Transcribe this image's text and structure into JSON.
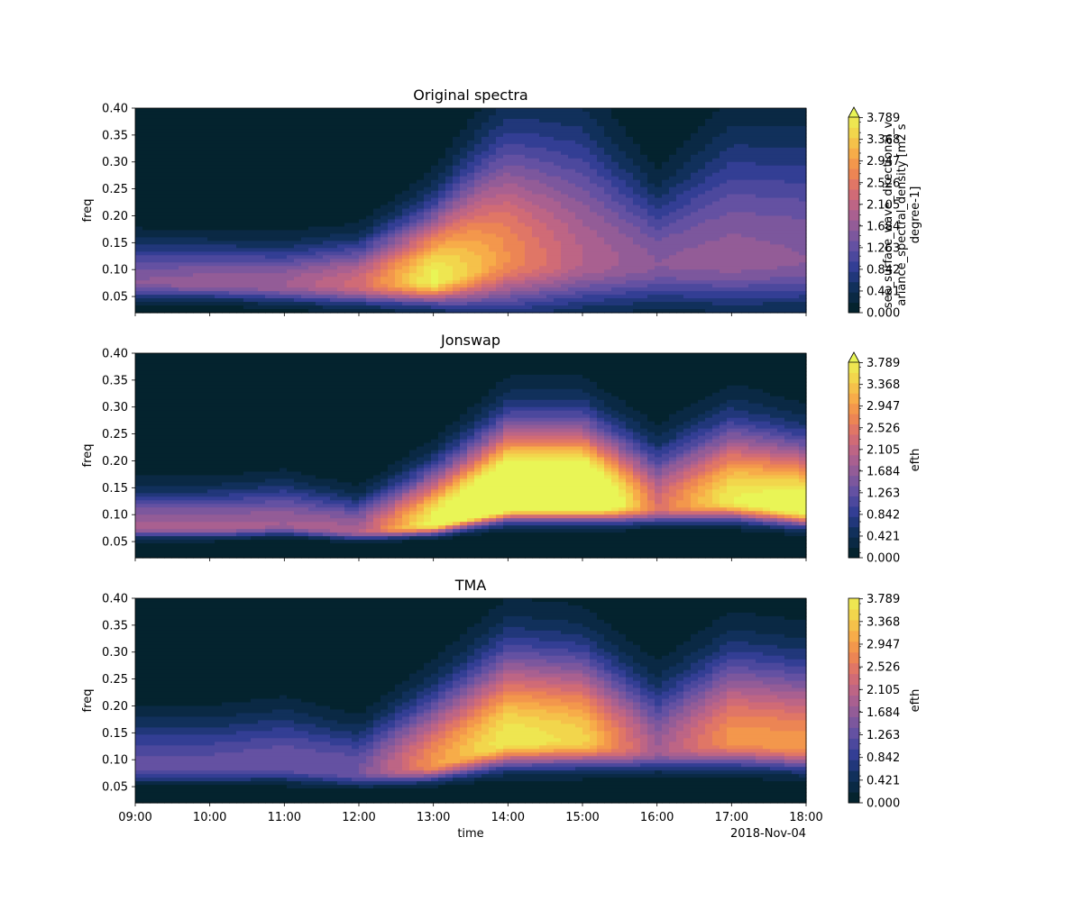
{
  "chart_data": [
    {
      "type": "heatmap",
      "title": "Original spectra",
      "xlabel": "",
      "ylabel": "freq",
      "xlim": [
        "09:00",
        "18:00"
      ],
      "ylim": [
        0.02,
        0.4
      ],
      "y_ticks": [
        0.05,
        0.1,
        0.15,
        0.2,
        0.25,
        0.3,
        0.35,
        0.4
      ],
      "x_tick_labels_visible": false,
      "colorbar": {
        "label": "sea_surface_wave_directional_variance_spectral_density [m2 s degree-1]",
        "label_lines": [
          "sea_surface_wave_directional_v",
          "ariance_spectral_density [m2 s",
          "degree-1]"
        ],
        "ticks": [
          0.0,
          0.421,
          0.842,
          1.263,
          1.684,
          2.105,
          2.526,
          2.947,
          3.368,
          3.789
        ],
        "extend": "max",
        "vmax": 4.0
      },
      "times": [
        "09:00",
        "10:00",
        "11:00",
        "12:00",
        "13:00",
        "14:00",
        "15:00",
        "16:00",
        "17:00",
        "18:00"
      ],
      "peak_freq": [
        0.075,
        0.075,
        0.072,
        0.072,
        0.08,
        0.12,
        0.115,
        0.11,
        0.115,
        0.115
      ],
      "peak_value": [
        1.6,
        1.7,
        1.8,
        2.3,
        3.9,
        2.8,
        2.0,
        1.6,
        1.7,
        1.6
      ],
      "low_width": [
        0.02,
        0.02,
        0.022,
        0.024,
        0.028,
        0.06,
        0.055,
        0.05,
        0.055,
        0.055
      ],
      "high_width": [
        0.05,
        0.048,
        0.047,
        0.052,
        0.085,
        0.15,
        0.16,
        0.085,
        0.15,
        0.15
      ]
    },
    {
      "type": "heatmap",
      "title": "Jonswap",
      "xlabel": "",
      "ylabel": "freq",
      "xlim": [
        "09:00",
        "18:00"
      ],
      "ylim": [
        0.02,
        0.4
      ],
      "y_ticks": [
        0.05,
        0.1,
        0.15,
        0.2,
        0.25,
        0.3,
        0.35,
        0.4
      ],
      "x_tick_labels_visible": false,
      "colorbar": {
        "label": "efth",
        "label_lines": [
          "efth"
        ],
        "ticks": [
          0.0,
          0.421,
          0.842,
          1.263,
          1.684,
          2.105,
          2.526,
          2.947,
          3.368,
          3.789
        ],
        "extend": "max",
        "vmax": 4.0
      },
      "times": [
        "09:00",
        "10:00",
        "11:00",
        "12:00",
        "13:00",
        "14:00",
        "15:00",
        "16:00",
        "17:00",
        "18:00"
      ],
      "peak_freq": [
        0.075,
        0.075,
        0.08,
        0.068,
        0.082,
        0.125,
        0.125,
        0.112,
        0.125,
        0.11
      ],
      "peak_value": [
        1.9,
        1.9,
        1.8,
        1.9,
        4.0,
        5.5,
        5.5,
        2.4,
        3.8,
        4.2
      ],
      "low_width": [
        0.012,
        0.012,
        0.012,
        0.01,
        0.012,
        0.022,
        0.022,
        0.018,
        0.022,
        0.02
      ],
      "high_width": [
        0.045,
        0.045,
        0.05,
        0.04,
        0.065,
        0.09,
        0.09,
        0.07,
        0.09,
        0.08
      ]
    },
    {
      "type": "heatmap",
      "title": "TMA",
      "xlabel": "time",
      "ylabel": "freq",
      "xlim": [
        "09:00",
        "18:00"
      ],
      "ylim": [
        0.02,
        0.4
      ],
      "y_ticks": [
        0.05,
        0.1,
        0.15,
        0.2,
        0.25,
        0.3,
        0.35,
        0.4
      ],
      "x_tick_labels_visible": true,
      "x_tick_labels": [
        "09:00",
        "10:00",
        "11:00",
        "12:00",
        "13:00",
        "14:00",
        "15:00",
        "16:00",
        "17:00",
        "18:00"
      ],
      "x_offset_label": "2018-Nov-04",
      "colorbar": {
        "label": "efth",
        "label_lines": [
          "efth"
        ],
        "ticks": [
          0.0,
          0.421,
          0.842,
          1.263,
          1.684,
          2.105,
          2.526,
          2.947,
          3.368,
          3.789
        ],
        "extend": "neither",
        "vmax": 4.0
      },
      "times": [
        "09:00",
        "10:00",
        "11:00",
        "12:00",
        "13:00",
        "14:00",
        "15:00",
        "16:00",
        "17:00",
        "18:00"
      ],
      "peak_freq": [
        0.085,
        0.085,
        0.09,
        0.075,
        0.09,
        0.135,
        0.135,
        0.115,
        0.135,
        0.125
      ],
      "peak_value": [
        1.3,
        1.3,
        1.4,
        1.4,
        2.9,
        3.8,
        3.5,
        1.8,
        2.9,
        2.9
      ],
      "low_width": [
        0.018,
        0.018,
        0.02,
        0.016,
        0.018,
        0.03,
        0.03,
        0.022,
        0.03,
        0.028
      ],
      "high_width": [
        0.06,
        0.06,
        0.065,
        0.055,
        0.085,
        0.11,
        0.105,
        0.08,
        0.105,
        0.1
      ]
    }
  ],
  "colormap": {
    "name": "thermal",
    "stops": [
      "#04232e",
      "#0f2f58",
      "#2e3c92",
      "#5d4fa3",
      "#8a5a9a",
      "#b4628c",
      "#d86d70",
      "#f0894f",
      "#f8b048",
      "#f2d84c",
      "#e9f556"
    ]
  }
}
